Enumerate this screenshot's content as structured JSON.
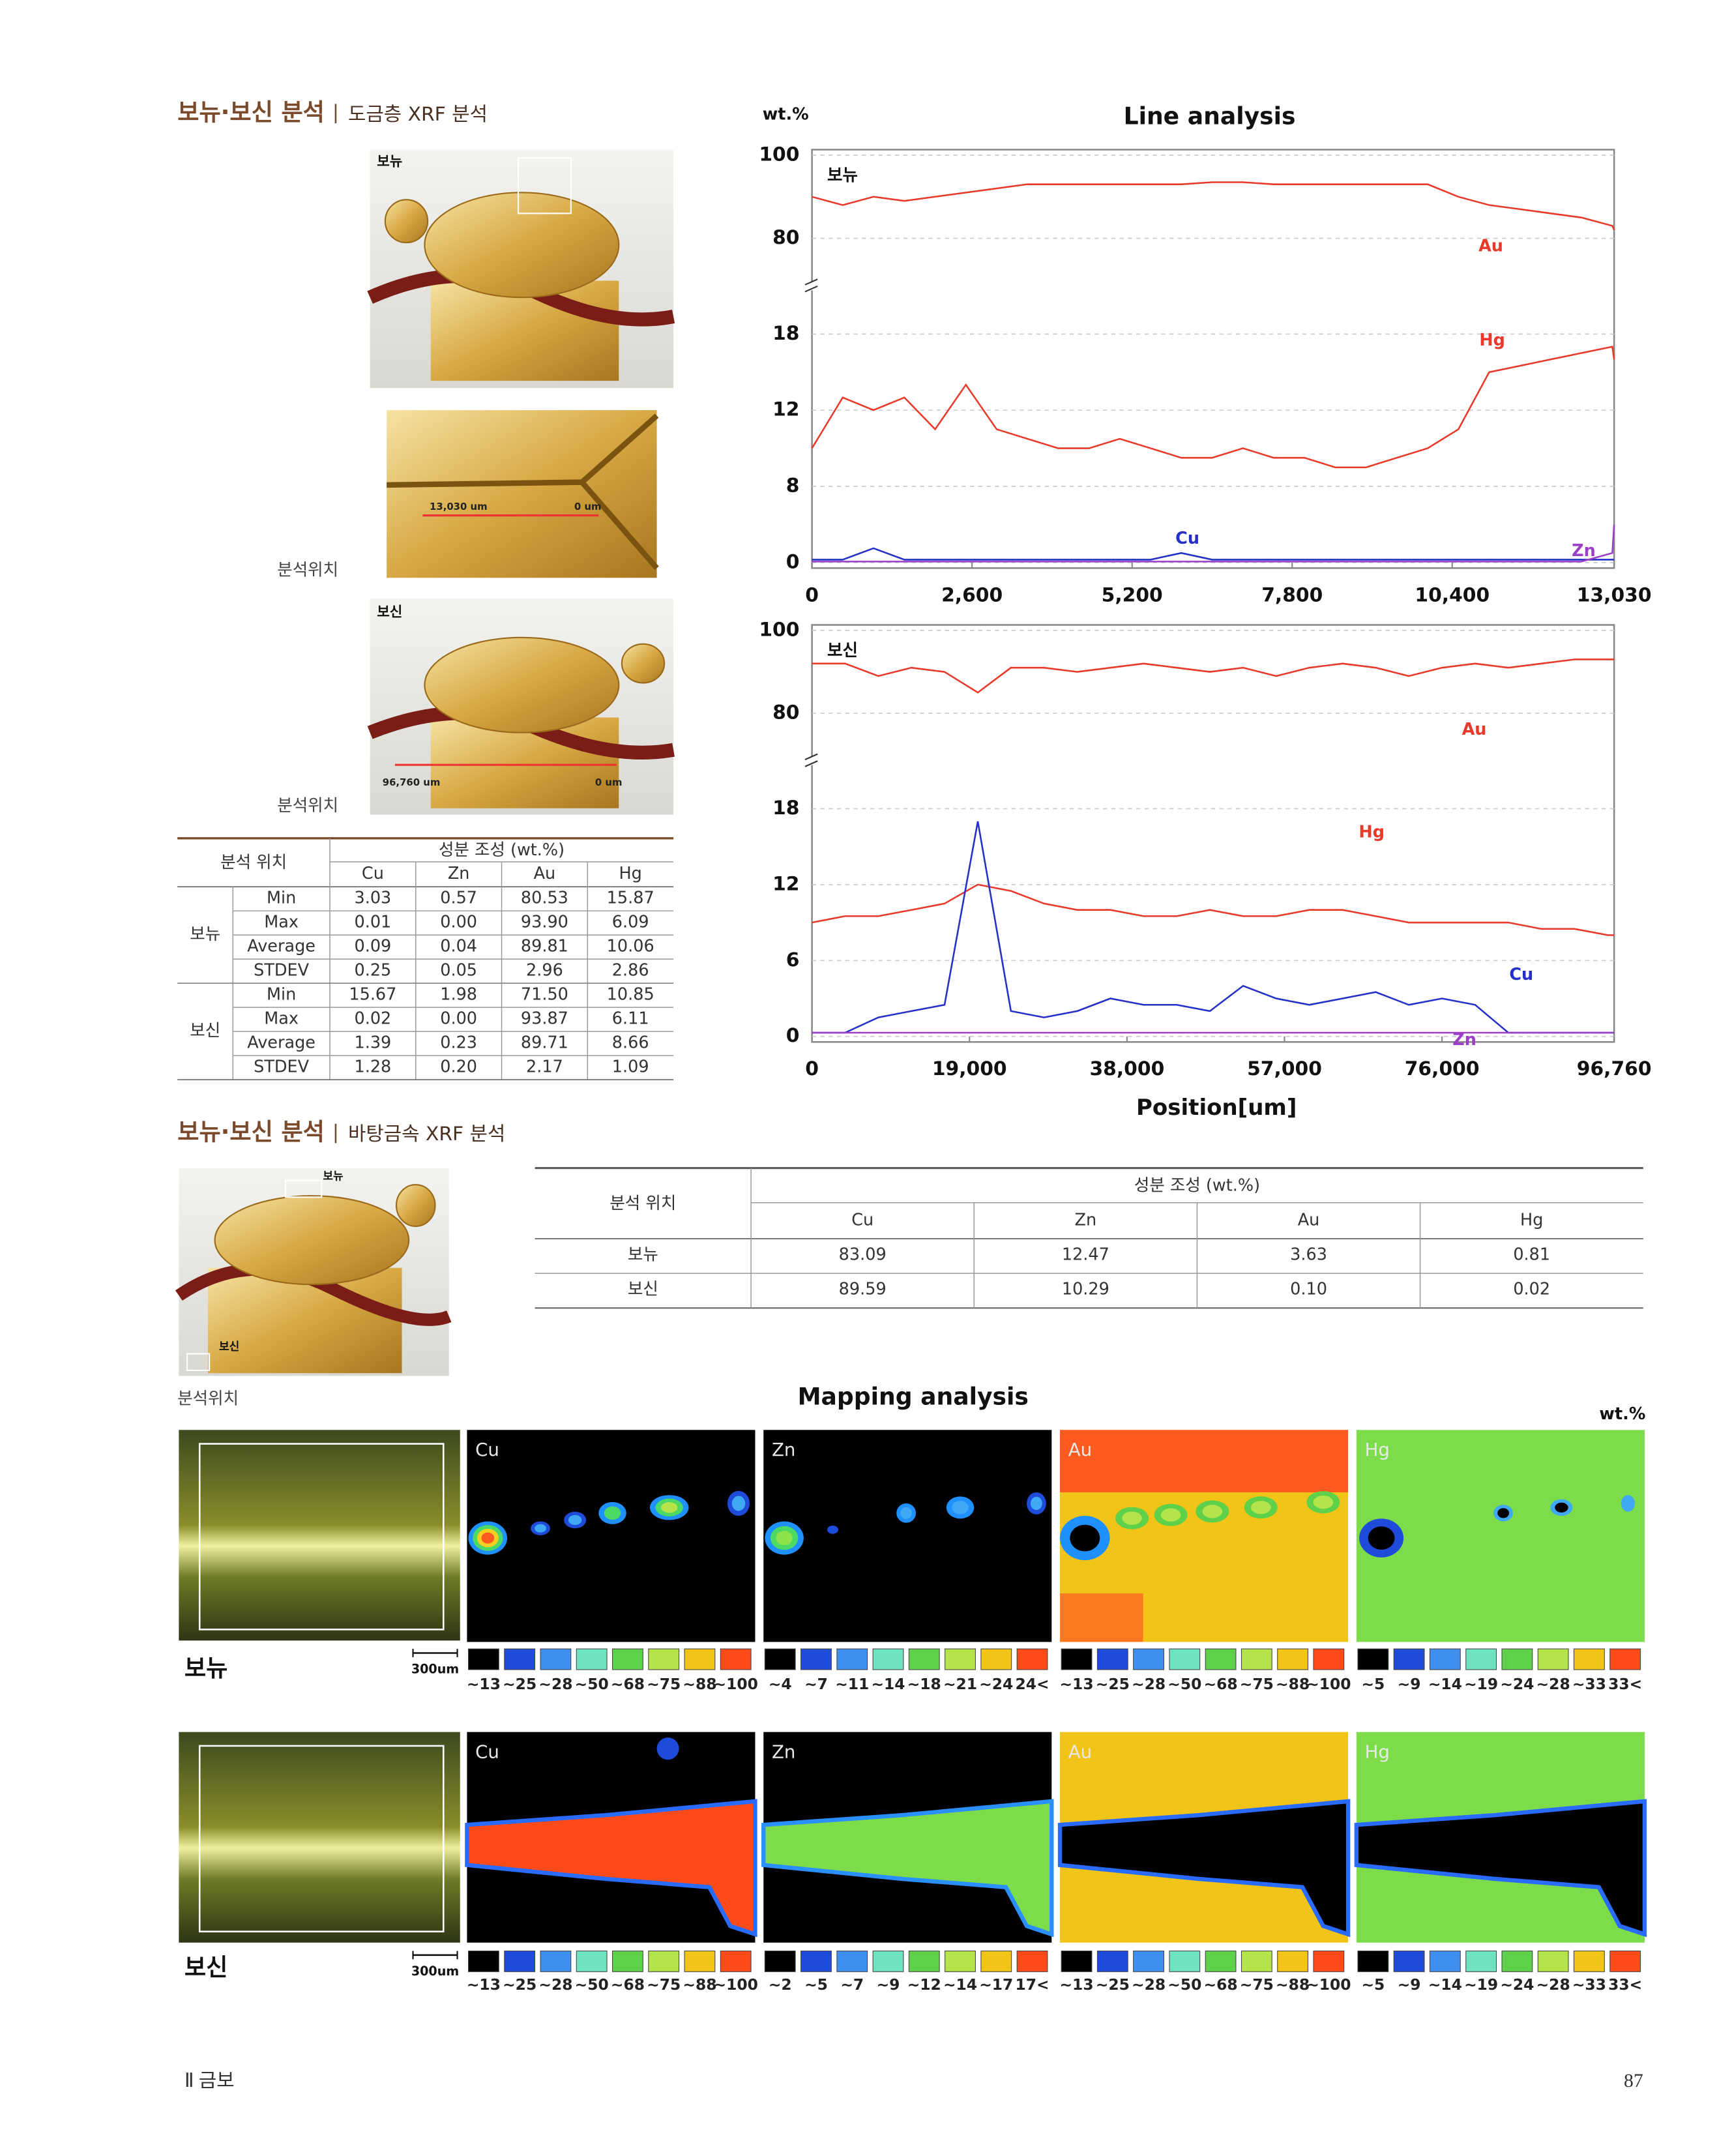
{
  "section1": {
    "title": "보뉴·보신 분석",
    "subtitle": "도금층 XRF 분석"
  },
  "photos": {
    "position_label": "분석위치",
    "top_label": "보뉴",
    "detail_left": "13,030 um",
    "detail_right": "0 um",
    "side_label": "보신",
    "side_left": "96,760 um",
    "side_right": "0 um"
  },
  "table1": {
    "header": {
      "position": "분석 위치",
      "composition": "성분 조성 (wt.%)",
      "elements": [
        "Cu",
        "Zn",
        "Au",
        "Hg"
      ]
    },
    "groups": [
      {
        "name": "보뉴",
        "rows": [
          {
            "stat": "Min",
            "values": [
              "3.03",
              "0.57",
              "80.53",
              "15.87"
            ]
          },
          {
            "stat": "Max",
            "values": [
              "0.01",
              "0.00",
              "93.90",
              "6.09"
            ]
          },
          {
            "stat": "Average",
            "values": [
              "0.09",
              "0.04",
              "89.81",
              "10.06"
            ]
          },
          {
            "stat": "STDEV",
            "values": [
              "0.25",
              "0.05",
              "2.96",
              "2.86"
            ]
          }
        ]
      },
      {
        "name": "보신",
        "rows": [
          {
            "stat": "Min",
            "values": [
              "15.67",
              "1.98",
              "71.50",
              "10.85"
            ]
          },
          {
            "stat": "Max",
            "values": [
              "0.02",
              "0.00",
              "93.87",
              "6.11"
            ]
          },
          {
            "stat": "Average",
            "values": [
              "1.39",
              "0.23",
              "89.71",
              "8.66"
            ]
          },
          {
            "stat": "STDEV",
            "values": [
              "1.28",
              "0.20",
              "2.17",
              "1.09"
            ]
          }
        ]
      }
    ]
  },
  "chart_data": [
    {
      "type": "line",
      "title": "Line analysis",
      "y_label": "wt.%",
      "panel_label": "보뉴",
      "axis_break": true,
      "x": [
        0,
        500,
        1000,
        1500,
        2000,
        2500,
        3000,
        3500,
        4000,
        4500,
        5000,
        5500,
        6000,
        6500,
        7000,
        7500,
        8000,
        8500,
        9000,
        9500,
        10000,
        10500,
        11000,
        11500,
        12000,
        12500,
        13000,
        13030
      ],
      "xlim": [
        0,
        13030
      ],
      "xticks": [
        0,
        {
          "value": 2600,
          "label": "2,600"
        },
        {
          "value": 5200,
          "label": "5,200"
        },
        {
          "value": 7800,
          "label": "7,800"
        },
        {
          "value": 10400,
          "label": "10,400"
        },
        {
          "value": 13030,
          "label": "13,030"
        }
      ],
      "ylim": [
        0,
        100
      ],
      "yticks": [
        0,
        8,
        12,
        18,
        80,
        100
      ],
      "grid": true,
      "series": [
        {
          "name": "Au",
          "color": "#e8392b",
          "values": [
            90,
            88,
            90,
            89,
            90,
            91,
            92,
            93,
            93,
            93,
            93,
            93,
            93,
            93.5,
            93.5,
            93,
            93,
            93,
            93,
            93,
            93,
            90,
            88,
            87,
            86,
            85,
            83,
            82
          ]
        },
        {
          "name": "Hg",
          "color": "#e8392b",
          "values": [
            10,
            13,
            12,
            13,
            11,
            14,
            11,
            10.5,
            10,
            10,
            10.5,
            10,
            9.5,
            9.5,
            10,
            9.5,
            9.5,
            9,
            9,
            9.5,
            10,
            11,
            15,
            15.5,
            16,
            16.5,
            17,
            16
          ]
        },
        {
          "name": "Cu",
          "color": "#2430c8",
          "values": [
            0.3,
            0.3,
            1.5,
            0.3,
            0.3,
            0.3,
            0.3,
            0.3,
            0.3,
            0.3,
            0.3,
            0.3,
            1,
            0.3,
            0.3,
            0.3,
            0.3,
            0.3,
            0.3,
            0.3,
            0.3,
            0.3,
            0.3,
            0.3,
            0.3,
            0.3,
            0.3,
            0.3
          ]
        },
        {
          "name": "Zn",
          "color": "#9b3fc9",
          "values": [
            0.1,
            0.1,
            0.1,
            0.1,
            0.1,
            0.1,
            0.1,
            0.1,
            0.1,
            0.1,
            0.1,
            0.1,
            0.1,
            0.1,
            0.1,
            0.1,
            0.1,
            0.1,
            0.1,
            0.1,
            0.1,
            0.1,
            0.1,
            0.1,
            0.1,
            0.1,
            1,
            4
          ]
        }
      ]
    },
    {
      "type": "line",
      "x_label": "Position[um]",
      "panel_label": "보신",
      "axis_break": true,
      "x": [
        0,
        4000,
        8000,
        12000,
        16000,
        20000,
        24000,
        28000,
        32000,
        36000,
        40000,
        44000,
        48000,
        52000,
        56000,
        60000,
        64000,
        68000,
        72000,
        76000,
        80000,
        84000,
        88000,
        92000,
        96000,
        96760
      ],
      "xlim": [
        0,
        96760
      ],
      "xticks": [
        0,
        {
          "value": 19000,
          "label": "19,000"
        },
        {
          "value": 38000,
          "label": "38,000"
        },
        {
          "value": 57000,
          "label": "57,000"
        },
        {
          "value": 76000,
          "label": "76,000"
        },
        {
          "value": 96760,
          "label": "96,760"
        }
      ],
      "ylim": [
        0,
        100
      ],
      "yticks": [
        0,
        6,
        12,
        18,
        80,
        100
      ],
      "grid": true,
      "series": [
        {
          "name": "Au",
          "color": "#e8392b",
          "values": [
            92,
            92,
            89,
            91,
            90,
            85,
            91,
            91,
            90,
            91,
            92,
            91,
            90,
            91,
            89,
            91,
            92,
            91,
            89,
            91,
            92,
            91,
            92,
            93,
            93,
            93
          ]
        },
        {
          "name": "Hg",
          "color": "#e8392b",
          "values": [
            9,
            9.5,
            9.5,
            10,
            10.5,
            12,
            11.5,
            10.5,
            10,
            10,
            9.5,
            9.5,
            10,
            9.5,
            9.5,
            10,
            10,
            9.5,
            9,
            9,
            9,
            9,
            8.5,
            8.5,
            8,
            8
          ]
        },
        {
          "name": "Cu",
          "color": "#2430c8",
          "values": [
            0.3,
            0.3,
            1.5,
            2,
            2.5,
            17,
            2,
            1.5,
            2,
            3,
            2.5,
            2.5,
            2,
            4,
            3,
            2.5,
            3,
            3.5,
            2.5,
            3,
            2.5,
            0.3,
            0.3,
            0.3,
            0.3,
            0.3
          ]
        },
        {
          "name": "Zn",
          "color": "#9b3fc9",
          "values": [
            0.3,
            0.3,
            0.3,
            0.3,
            0.3,
            0.3,
            0.3,
            0.3,
            0.3,
            0.3,
            0.3,
            0.3,
            0.3,
            0.3,
            0.3,
            0.3,
            0.3,
            0.3,
            0.3,
            0.3,
            0.3,
            0.3,
            0.3,
            0.3,
            0.3,
            0.3
          ]
        }
      ]
    }
  ],
  "section2": {
    "title": "보뉴·보신 분석",
    "subtitle": "바탕금속 XRF 분석",
    "photo_labels": [
      "보뉴",
      "보신"
    ],
    "position_label": "분석위치"
  },
  "table2": {
    "header": {
      "position": "분석 위치",
      "composition": "성분 조성 (wt.%)",
      "elements": [
        "Cu",
        "Zn",
        "Au",
        "Hg"
      ]
    },
    "rows": [
      {
        "name": "보뉴",
        "values": [
          "83.09",
          "12.47",
          "3.63",
          "0.81"
        ]
      },
      {
        "name": "보신",
        "values": [
          "89.59",
          "10.29",
          "0.10",
          "0.02"
        ]
      }
    ]
  },
  "mapping": {
    "title": "Mapping analysis",
    "unit": "wt.%",
    "rows": [
      {
        "name": "보뉴",
        "scale": "300um",
        "panels": [
          {
            "element": "Cu",
            "legend": [
              "~13",
              "~25",
              "~28",
              "~50",
              "~68",
              "~75",
              "~88",
              "~100"
            ]
          },
          {
            "element": "Zn",
            "legend": [
              "~4",
              "~7",
              "~11",
              "~14",
              "~18",
              "~21",
              "~24",
              "24<"
            ]
          },
          {
            "element": "Au",
            "legend": [
              "~13",
              "~25",
              "~28",
              "~50",
              "~68",
              "~75",
              "~88",
              "~100"
            ]
          },
          {
            "element": "Hg",
            "legend": [
              "~5",
              "~9",
              "~14",
              "~19",
              "~24",
              "~28",
              "~33",
              "33<"
            ]
          }
        ]
      },
      {
        "name": "보신",
        "scale": "300um",
        "panels": [
          {
            "element": "Cu",
            "legend": [
              "~13",
              "~25",
              "~28",
              "~50",
              "~68",
              "~75",
              "~88",
              "~100"
            ]
          },
          {
            "element": "Zn",
            "legend": [
              "~2",
              "~5",
              "~7",
              "~9",
              "~12",
              "~14",
              "~17",
              "17<"
            ]
          },
          {
            "element": "Au",
            "legend": [
              "~13",
              "~25",
              "~28",
              "~50",
              "~68",
              "~75",
              "~88",
              "~100"
            ]
          },
          {
            "element": "Hg",
            "legend": [
              "~5",
              "~9",
              "~14",
              "~19",
              "~24",
              "~28",
              "~33",
              "33<"
            ]
          }
        ]
      }
    ]
  },
  "footer": {
    "chapter": "Ⅱ 금보",
    "page": "87"
  }
}
